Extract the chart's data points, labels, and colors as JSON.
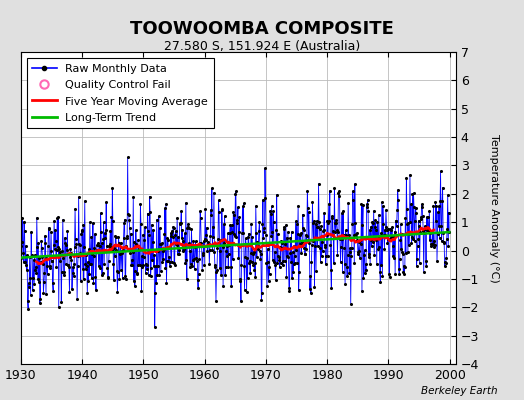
{
  "title": "TOOWOOMBA COMPOSITE",
  "subtitle": "27.580 S, 151.924 E (Australia)",
  "ylabel": "Temperature Anomaly (°C)",
  "watermark": "Berkeley Earth",
  "x_start": 1930,
  "x_end": 2001,
  "y_min": -4,
  "y_max": 7,
  "yticks": [
    -4,
    -3,
    -2,
    -1,
    0,
    1,
    2,
    3,
    4,
    5,
    6,
    7
  ],
  "xticks": [
    1930,
    1940,
    1950,
    1960,
    1970,
    1980,
    1990,
    2000
  ],
  "raw_color": "#0000FF",
  "ma_color": "#FF0000",
  "trend_color": "#00BB00",
  "qc_color": "#FF69B4",
  "dot_color": "#000000",
  "background_color": "#E0E0E0",
  "plot_bg_color": "#FFFFFF",
  "grid_color": "#BBBBBB",
  "title_fontsize": 13,
  "subtitle_fontsize": 9,
  "legend_fontsize": 8,
  "tick_fontsize": 9,
  "ylabel_fontsize": 8
}
